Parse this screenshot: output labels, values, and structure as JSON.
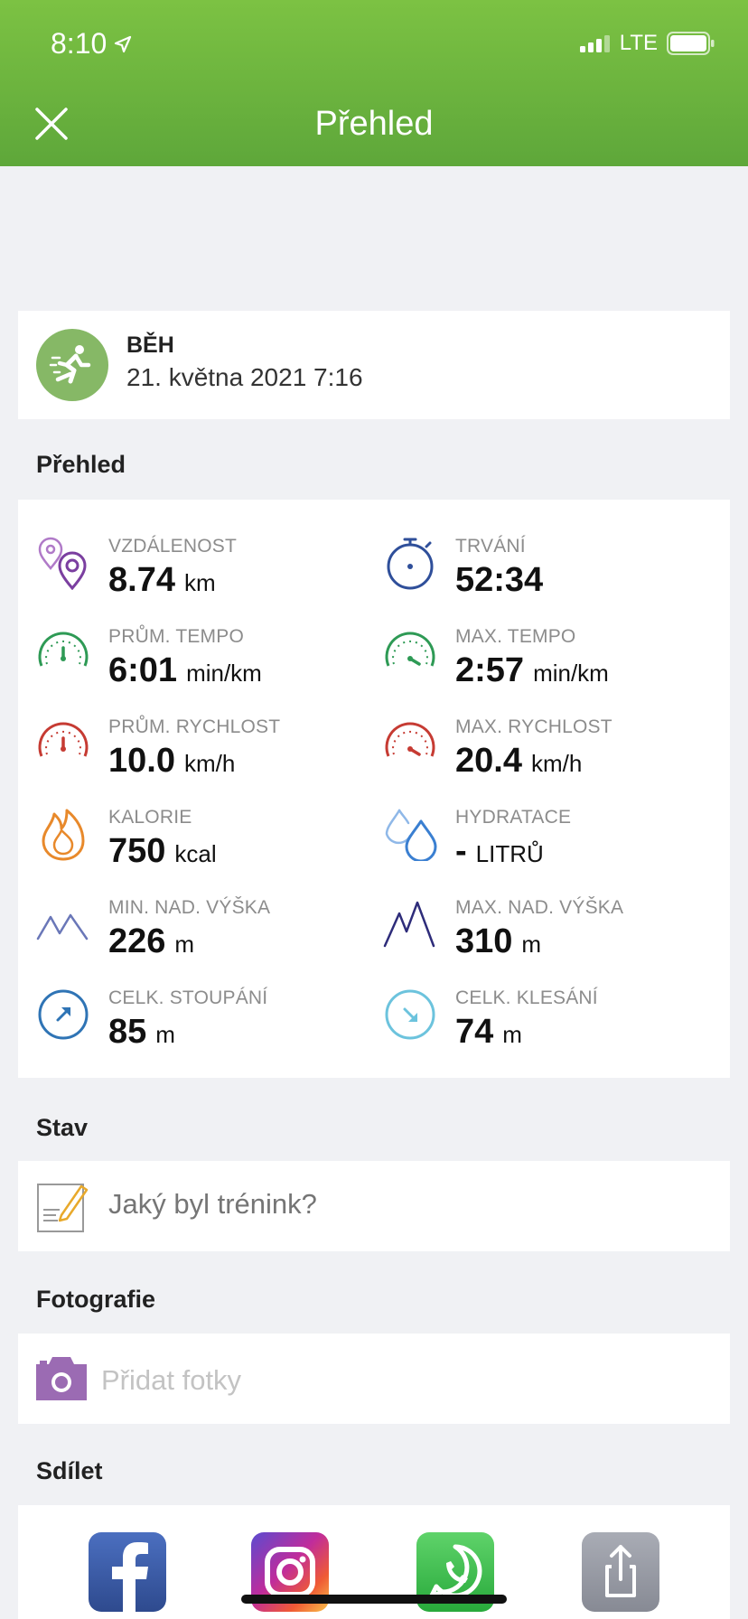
{
  "status_bar": {
    "time": "8:10",
    "network": "LTE"
  },
  "nav": {
    "title": "Přehled"
  },
  "activity": {
    "type": "BĚH",
    "date": "21. května 2021 7:16"
  },
  "overview": {
    "section_title": "Přehled",
    "stats": [
      {
        "label": "VZDÁLENOST",
        "value": "8.74",
        "unit": "km",
        "icon": "location-pins-icon",
        "color": "#7b3fa0"
      },
      {
        "label": "TRVÁNÍ",
        "value": "52:34",
        "unit": "",
        "icon": "stopwatch-icon",
        "color": "#2f4f9a"
      },
      {
        "label": "PRŮM. TEMPO",
        "value": "6:01",
        "unit": "min/km",
        "icon": "speedometer-icon",
        "color": "#2e9a55"
      },
      {
        "label": "MAX. TEMPO",
        "value": "2:57",
        "unit": "min/km",
        "icon": "speedometer-icon",
        "color": "#2e9a55"
      },
      {
        "label": "PRŮM. RYCHLOST",
        "value": "10.0",
        "unit": "km/h",
        "icon": "speedometer-icon",
        "color": "#c63b33"
      },
      {
        "label": "MAX. RYCHLOST",
        "value": "20.4",
        "unit": "km/h",
        "icon": "speedometer-icon",
        "color": "#c63b33"
      },
      {
        "label": "KALORIE",
        "value": "750",
        "unit": "kcal",
        "icon": "flame-icon",
        "color": "#e8892b"
      },
      {
        "label": "HYDRATACE",
        "value": "-",
        "unit": "LITRŮ",
        "icon": "water-drops-icon",
        "color": "#3a7fd1"
      },
      {
        "label": "MIN. NAD. VÝŠKA",
        "value": "226",
        "unit": "m",
        "icon": "mountain-low-icon",
        "color": "#3a4a8f"
      },
      {
        "label": "MAX. NAD. VÝŠKA",
        "value": "310",
        "unit": "m",
        "icon": "mountain-high-icon",
        "color": "#2e2c7a"
      },
      {
        "label": "CELK. STOUPÁNÍ",
        "value": "85",
        "unit": "m",
        "icon": "arrow-up-right-circle-icon",
        "color": "#2f74b5"
      },
      {
        "label": "CELK. KLESÁNÍ",
        "value": "74",
        "unit": "m",
        "icon": "arrow-down-right-circle-icon",
        "color": "#6cc3dd"
      }
    ]
  },
  "status_section": {
    "title": "Stav",
    "placeholder": "Jaký byl trénink?"
  },
  "photos_section": {
    "title": "Fotografie",
    "placeholder": "Přidat fotky"
  },
  "share_section": {
    "title": "Sdílet",
    "targets": [
      "facebook-icon",
      "instagram-icon",
      "whatsapp-icon",
      "share-icon"
    ]
  }
}
